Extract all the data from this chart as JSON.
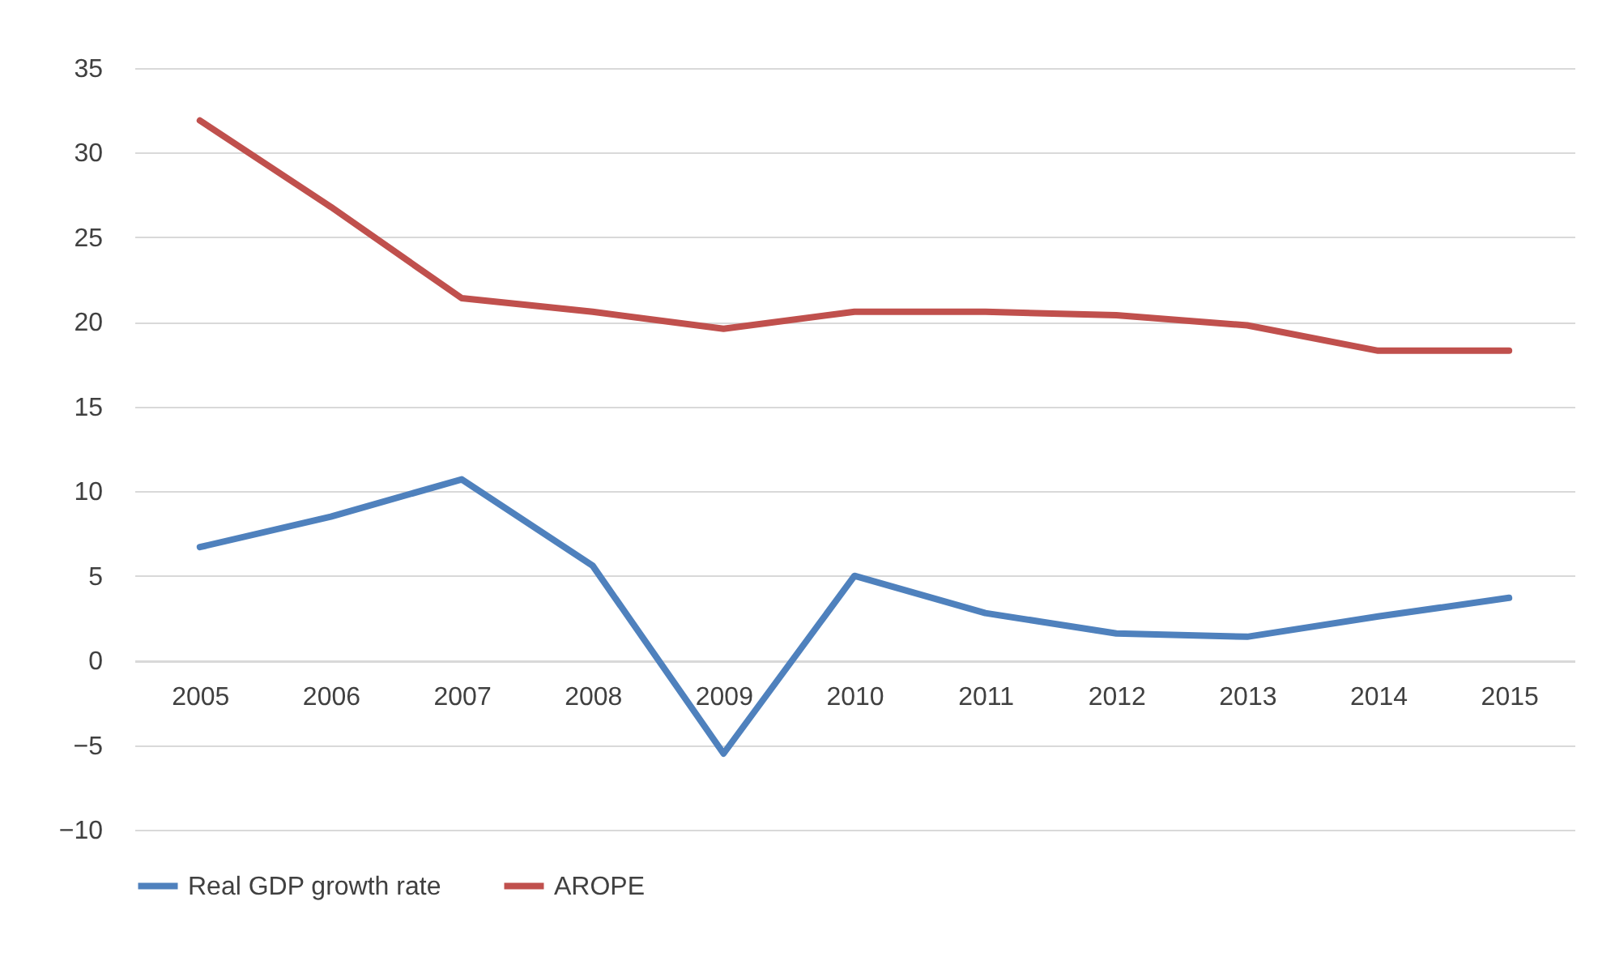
{
  "chart_data": {
    "type": "line",
    "categories": [
      "2005",
      "2006",
      "2007",
      "2008",
      "2009",
      "2010",
      "2011",
      "2012",
      "2013",
      "2014",
      "2015"
    ],
    "series": [
      {
        "name": "Real GDP growth rate",
        "color": "#4f81bd",
        "values": [
          6.7,
          8.5,
          10.7,
          5.6,
          -5.5,
          5.0,
          2.8,
          1.6,
          1.4,
          2.6,
          3.7
        ]
      },
      {
        "name": "AROPE",
        "color": "#c0504d",
        "values": [
          31.9,
          26.8,
          21.4,
          20.6,
          19.6,
          20.6,
          20.6,
          20.4,
          19.8,
          18.3,
          18.3
        ]
      }
    ],
    "ylim": [
      -10,
      35
    ],
    "yticks": [
      -10,
      -5,
      0,
      5,
      10,
      15,
      20,
      25,
      30,
      35
    ],
    "grid": "y",
    "legend": "bottom"
  }
}
